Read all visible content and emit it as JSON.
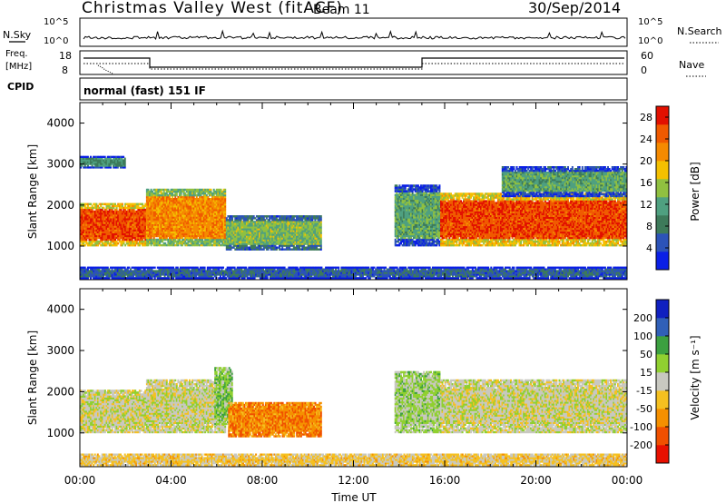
{
  "header": {
    "station": "Christmas Valley West (fitACF)",
    "beam": "Beam 11",
    "date": "30/Sep/2014"
  },
  "noise_panel": {
    "left_label": "N.Sky",
    "right_label": "N.Search",
    "top_tick": "10^5",
    "bottom_tick": "10^0"
  },
  "freq_panel": {
    "left_label_line1": "Freq.",
    "left_label_line2": "[MHz]",
    "left_ticks": [
      "18",
      "8"
    ],
    "right_ticks": [
      "60",
      "0"
    ],
    "right_label": "Nave"
  },
  "cpid": {
    "label": "CPID",
    "value": "normal (fast) 151 IF"
  },
  "colors": {
    "power_scale": [
      "#0a1fe6",
      "#2c53b8",
      "#3d7a5a",
      "#4fa080",
      "#90c040",
      "#f4c000",
      "#f58a00",
      "#f05a00",
      "#e21000"
    ],
    "velocity_scale": [
      "#1020c0",
      "#3060b8",
      "#3ca040",
      "#90d030",
      "#c8c8c0",
      "#f5c020",
      "#f59000",
      "#f05000",
      "#e81000"
    ]
  },
  "chart_data": [
    {
      "type": "heatmap",
      "panel": "power",
      "ylabel": "Slant Range [km]",
      "ylim": [
        180,
        4500
      ],
      "y_ticks": [
        "1000",
        "2000",
        "3000",
        "4000"
      ],
      "xlim": [
        "00:00",
        "24:00"
      ],
      "colorbar": {
        "label": "Power [dB]",
        "range": [
          0,
          30
        ],
        "ticks": [
          "4",
          "8",
          "12",
          "16",
          "20",
          "24",
          "28"
        ]
      },
      "regions": [
        {
          "t_start": 0.0,
          "t_end": 2.9,
          "range_low": 1000,
          "range_high": 2050,
          "value": 26
        },
        {
          "t_start": 0.0,
          "t_end": 2.0,
          "range_low": 2900,
          "range_high": 3200,
          "value": 10
        },
        {
          "t_start": 2.9,
          "t_end": 6.4,
          "range_low": 1000,
          "range_high": 2400,
          "value": 22
        },
        {
          "t_start": 6.4,
          "t_end": 10.6,
          "range_low": 900,
          "range_high": 1750,
          "value": 14
        },
        {
          "t_start": 13.8,
          "t_end": 15.8,
          "range_low": 1000,
          "range_high": 2500,
          "value": 12
        },
        {
          "t_start": 15.8,
          "t_end": 24.0,
          "range_low": 1000,
          "range_high": 2300,
          "value": 26
        },
        {
          "t_start": 18.5,
          "t_end": 24.0,
          "range_low": 2200,
          "range_high": 2950,
          "value": 12
        },
        {
          "t_start": 0.0,
          "t_end": 24.0,
          "range_low": 200,
          "range_high": 500,
          "value": 6
        }
      ]
    },
    {
      "type": "heatmap",
      "panel": "velocity",
      "ylabel": "Slant Range [km]",
      "xlabel": "Time UT",
      "ylim": [
        180,
        4500
      ],
      "y_ticks": [
        "1000",
        "2000",
        "3000",
        "4000"
      ],
      "x_ticks": [
        "00:00",
        "04:00",
        "08:00",
        "12:00",
        "16:00",
        "20:00",
        "00:00"
      ],
      "colorbar": {
        "label": "Velocity [m s⁻¹]",
        "range": [
          -250,
          250
        ],
        "ticks": [
          "200",
          "100",
          "50",
          "15",
          "-15",
          "-50",
          "-100",
          "-200"
        ]
      },
      "regions": [
        {
          "t_start": 0.0,
          "t_end": 2.9,
          "range_low": 1000,
          "range_high": 2050,
          "value": 0
        },
        {
          "t_start": 2.9,
          "t_end": 6.4,
          "range_low": 1000,
          "range_high": 2300,
          "value": 0
        },
        {
          "t_start": 5.9,
          "t_end": 6.7,
          "range_low": 1200,
          "range_high": 2600,
          "value": 60
        },
        {
          "t_start": 6.5,
          "t_end": 10.6,
          "range_low": 900,
          "range_high": 1750,
          "value": -120
        },
        {
          "t_start": 13.8,
          "t_end": 15.8,
          "range_low": 1000,
          "range_high": 2500,
          "value": 40
        },
        {
          "t_start": 15.8,
          "t_end": 24.0,
          "range_low": 1000,
          "range_high": 2300,
          "value": 0
        },
        {
          "t_start": 0.0,
          "t_end": 24.0,
          "range_low": 200,
          "range_high": 500,
          "value": -40
        }
      ]
    }
  ]
}
